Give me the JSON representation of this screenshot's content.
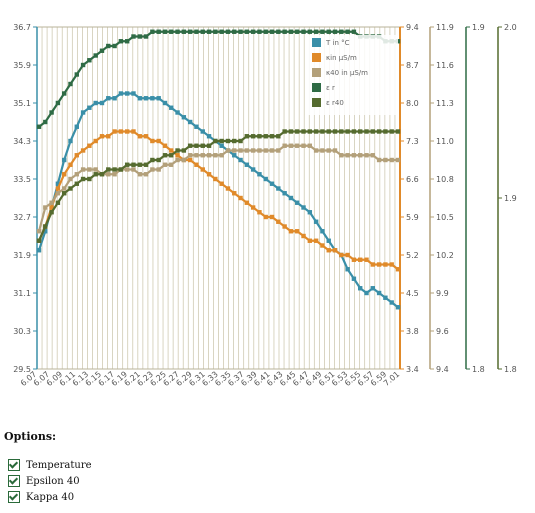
{
  "chart_data": {
    "type": "line",
    "title": "",
    "x_tick_labels": [
      "6.07",
      "6.07",
      "6.09",
      "6.11",
      "6.13",
      "6.15",
      "6.17",
      "6.19",
      "6.21",
      "6.23",
      "6.25",
      "6.27",
      "6.29",
      "6.31",
      "6.33",
      "6.35",
      "6.37",
      "6.39",
      "6.41",
      "6.43",
      "6.45",
      "6.47",
      "6.49",
      "6.51",
      "6.53",
      "6.55",
      "6.57",
      "6.59",
      "7.01"
    ],
    "left_axis": {
      "ticks": [
        29.5,
        30.3,
        31.1,
        31.9,
        32.7,
        33.5,
        34.3,
        35.1,
        35.9,
        36.7
      ],
      "ylim": [
        29.5,
        36.7
      ]
    },
    "right_axes": [
      {
        "name": "kappa",
        "ticks": [
          3.4,
          3.8,
          4.5,
          5.2,
          5.9,
          6.6,
          7.3,
          8.0,
          8.7,
          9.4
        ],
        "ylim": [
          3.4,
          9.4
        ]
      },
      {
        "name": "kappa40",
        "ticks": [
          9.4,
          9.6,
          9.9,
          10.2,
          10.5,
          10.8,
          11.0,
          11.3,
          11.6,
          11.9
        ],
        "ylim": [
          9.4,
          11.9
        ]
      },
      {
        "name": "epsilon",
        "ticks": [
          1.8,
          1.9
        ],
        "ylim": [
          1.8,
          1.9
        ]
      },
      {
        "name": "epsilon40",
        "ticks": [
          1.8,
          1.9,
          2.0
        ],
        "ylim": [
          1.8,
          2.0
        ]
      }
    ],
    "series": [
      {
        "name": "T in °C",
        "color": "#3a8fa8",
        "values": [
          32.0,
          32.4,
          32.9,
          33.4,
          33.9,
          34.3,
          34.6,
          34.9,
          35.0,
          35.1,
          35.1,
          35.2,
          35.2,
          35.3,
          35.3,
          35.3,
          35.2,
          35.2,
          35.2,
          35.2,
          35.1,
          35.0,
          34.9,
          34.8,
          34.7,
          34.6,
          34.5,
          34.4,
          34.3,
          34.2,
          34.1,
          34.0,
          33.9,
          33.8,
          33.7,
          33.6,
          33.5,
          33.4,
          33.3,
          33.2,
          33.1,
          33.0,
          32.9,
          32.8,
          32.6,
          32.4,
          32.2,
          32.0,
          31.9,
          31.6,
          31.4,
          31.2,
          31.1,
          31.2,
          31.1,
          31.0,
          30.9,
          30.8
        ]
      },
      {
        "name": "κin µS/m",
        "color": "#e08a2a",
        "values": [
          32.2,
          32.5,
          32.9,
          33.3,
          33.6,
          33.8,
          34.0,
          34.1,
          34.2,
          34.3,
          34.4,
          34.4,
          34.5,
          34.5,
          34.5,
          34.5,
          34.4,
          34.4,
          34.3,
          34.3,
          34.2,
          34.1,
          34.0,
          33.9,
          33.9,
          33.8,
          33.7,
          33.6,
          33.5,
          33.4,
          33.3,
          33.2,
          33.1,
          33.0,
          32.9,
          32.8,
          32.7,
          32.7,
          32.6,
          32.5,
          32.4,
          32.4,
          32.3,
          32.2,
          32.2,
          32.1,
          32.0,
          32.0,
          31.9,
          31.9,
          31.8,
          31.8,
          31.8,
          31.7,
          31.7,
          31.7,
          31.7,
          31.6
        ]
      },
      {
        "name": "κ40 in µS/m",
        "color": "#b3a07a",
        "values": [
          32.4,
          32.9,
          33.0,
          33.2,
          33.3,
          33.5,
          33.6,
          33.7,
          33.7,
          33.7,
          33.6,
          33.6,
          33.6,
          33.7,
          33.7,
          33.7,
          33.6,
          33.6,
          33.7,
          33.7,
          33.8,
          33.8,
          33.9,
          33.9,
          34.0,
          34.0,
          34.0,
          34.0,
          34.0,
          34.0,
          34.1,
          34.1,
          34.1,
          34.1,
          34.1,
          34.1,
          34.1,
          34.1,
          34.1,
          34.2,
          34.2,
          34.2,
          34.2,
          34.2,
          34.1,
          34.1,
          34.1,
          34.1,
          34.0,
          34.0,
          34.0,
          34.0,
          34.0,
          34.0,
          33.9,
          33.9,
          33.9,
          33.9
        ]
      },
      {
        "name": "ε r",
        "color": "#2f6b45",
        "values": [
          34.6,
          34.7,
          34.9,
          35.1,
          35.3,
          35.5,
          35.7,
          35.9,
          36.0,
          36.1,
          36.2,
          36.3,
          36.3,
          36.4,
          36.4,
          36.5,
          36.5,
          36.5,
          36.6,
          36.6,
          36.6,
          36.6,
          36.6,
          36.6,
          36.6,
          36.6,
          36.6,
          36.6,
          36.6,
          36.6,
          36.6,
          36.6,
          36.6,
          36.6,
          36.6,
          36.6,
          36.6,
          36.6,
          36.6,
          36.6,
          36.6,
          36.6,
          36.6,
          36.6,
          36.6,
          36.6,
          36.6,
          36.6,
          36.6,
          36.6,
          36.6,
          36.5,
          36.5,
          36.5,
          36.5,
          36.4,
          36.4,
          36.4
        ]
      },
      {
        "name": "ε r40",
        "color": "#556b2f",
        "values": [
          32.2,
          32.5,
          32.8,
          33.0,
          33.2,
          33.3,
          33.4,
          33.5,
          33.5,
          33.6,
          33.6,
          33.7,
          33.7,
          33.7,
          33.8,
          33.8,
          33.8,
          33.8,
          33.9,
          33.9,
          34.0,
          34.0,
          34.1,
          34.1,
          34.2,
          34.2,
          34.2,
          34.2,
          34.3,
          34.3,
          34.3,
          34.3,
          34.3,
          34.4,
          34.4,
          34.4,
          34.4,
          34.4,
          34.4,
          34.5,
          34.5,
          34.5,
          34.5,
          34.5,
          34.5,
          34.5,
          34.5,
          34.5,
          34.5,
          34.5,
          34.5,
          34.5,
          34.5,
          34.5,
          34.5,
          34.5,
          34.5,
          34.5
        ]
      }
    ],
    "legend_position": "top-right",
    "grid": "vertical"
  },
  "options": {
    "title": "Options:",
    "items": [
      {
        "label": "Temperature",
        "checked": true
      },
      {
        "label": "Epsilon 40",
        "checked": true
      },
      {
        "label": "Kappa 40",
        "checked": true
      }
    ]
  }
}
